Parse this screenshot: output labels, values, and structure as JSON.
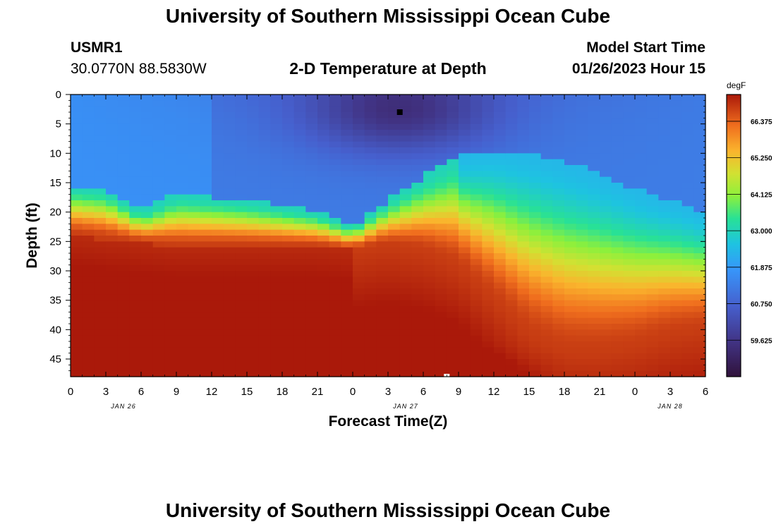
{
  "header": {
    "title": "University of Southern Mississippi Ocean Cube",
    "station_id": "USMR1",
    "coordinates": "30.0770N  88.5830W",
    "plot_title": "2-D Temperature at Depth",
    "model_start_label": "Model Start Time",
    "model_start_value": "01/26/2023 Hour 15"
  },
  "footer": {
    "title": "University of Southern Mississippi Ocean Cube"
  },
  "chart_data": {
    "type": "heatmap",
    "title": "2-D Temperature at Depth",
    "xlabel": "Forecast Time(Z)",
    "ylabel": "Depth (ft)",
    "x_tick_labels": [
      "0",
      "3",
      "6",
      "9",
      "12",
      "15",
      "18",
      "21",
      "0",
      "3",
      "6",
      "9",
      "12",
      "15",
      "18",
      "21",
      "0",
      "3",
      "6"
    ],
    "date_labels": [
      {
        "label": "JAN 26",
        "tick_index": 1.5
      },
      {
        "label": "JAN 27",
        "tick_index": 9.5
      },
      {
        "label": "JAN 28",
        "tick_index": 17
      }
    ],
    "xlim": [
      0,
      54
    ],
    "y_ticks": [
      0,
      5,
      10,
      15,
      20,
      25,
      30,
      35,
      40,
      45
    ],
    "ylim": [
      0,
      48
    ],
    "colorbar": {
      "unit": "degF",
      "min": 58.5,
      "max": 67.2,
      "tick_values": [
        66.375,
        65.25,
        64.125,
        63.0,
        61.875,
        60.75,
        59.625
      ],
      "tick_labels": [
        "66.375",
        "65.250",
        "64.125",
        "63.000",
        "61.875",
        "60.750",
        "59.625"
      ]
    },
    "markers": [
      {
        "type": "min",
        "hour": 28,
        "depth": 3,
        "color": "#000000"
      },
      {
        "type": "max",
        "hour": 32,
        "depth": 48,
        "color": "#ffffff"
      }
    ],
    "field": {
      "cold_temp": 61.3,
      "warm_temp": 66.8,
      "cold_min_temp": 58.6,
      "cold_min_hour": 28,
      "cold_min_depth": 3,
      "mixed_layer_depth_by_hour": [
        [
          0,
          16.5
        ],
        [
          3,
          17
        ],
        [
          6,
          21
        ],
        [
          9,
          18
        ],
        [
          15,
          19
        ],
        [
          21,
          21
        ],
        [
          24,
          23.5
        ],
        [
          27,
          19
        ],
        [
          30,
          15
        ],
        [
          33,
          11.5
        ],
        [
          36,
          10.5
        ],
        [
          39,
          11
        ],
        [
          42,
          12.5
        ],
        [
          45,
          14.5
        ],
        [
          48,
          17
        ],
        [
          51,
          19
        ],
        [
          54,
          21
        ]
      ],
      "warm_layer_depth_by_hour": [
        [
          0,
          24
        ],
        [
          9,
          26
        ],
        [
          21,
          26
        ],
        [
          24,
          26.5
        ],
        [
          27,
          25.5
        ],
        [
          30,
          26.5
        ],
        [
          33,
          29
        ],
        [
          36,
          35
        ],
        [
          39,
          41
        ],
        [
          42,
          44
        ],
        [
          45,
          44
        ],
        [
          48,
          43
        ],
        [
          51,
          41
        ],
        [
          54,
          40
        ]
      ]
    }
  }
}
